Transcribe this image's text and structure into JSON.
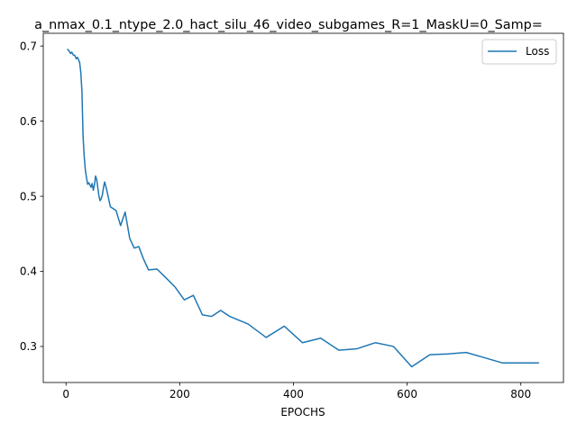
{
  "chart_data": {
    "type": "line",
    "title": "a_nmax_0.1_ntype_2.0_hact_silu_46_video_subgames_R=1_MaskU=0_Samp=",
    "xlabel": "EPOCHS",
    "ylabel": "",
    "xlim": [
      -40,
      875
    ],
    "ylim": [
      0.252,
      0.717
    ],
    "x_ticks": [
      0,
      200,
      400,
      600,
      800
    ],
    "y_ticks": [
      0.3,
      0.4,
      0.5,
      0.6,
      0.7
    ],
    "x_tick_labels": [
      "0",
      "200",
      "400",
      "600",
      "800"
    ],
    "y_tick_labels": [
      "0.3",
      "0.4",
      "0.5",
      "0.6",
      "0.7"
    ],
    "grid": false,
    "legend_position": "top-right",
    "series": [
      {
        "name": "Loss",
        "color": "#1f77b4",
        "x": [
          2,
          5,
          8,
          10,
          13,
          15,
          18,
          20,
          22,
          24,
          26,
          28,
          30,
          32,
          34,
          36,
          38,
          40,
          42,
          44,
          46,
          48,
          50,
          52,
          54,
          56,
          58,
          60,
          62,
          64,
          66,
          68,
          72,
          78,
          88,
          96,
          104,
          112,
          120,
          128,
          136,
          145,
          160,
          175,
          192,
          208,
          224,
          240,
          256,
          272,
          288,
          320,
          352,
          384,
          416,
          448,
          480,
          512,
          544,
          576,
          608,
          640,
          672,
          704,
          736,
          768,
          800,
          832
        ],
        "y": [
          0.696,
          0.694,
          0.69,
          0.692,
          0.688,
          0.688,
          0.683,
          0.685,
          0.682,
          0.678,
          0.665,
          0.64,
          0.58,
          0.553,
          0.535,
          0.525,
          0.516,
          0.518,
          0.515,
          0.512,
          0.517,
          0.508,
          0.515,
          0.527,
          0.522,
          0.511,
          0.5,
          0.494,
          0.497,
          0.502,
          0.512,
          0.519,
          0.507,
          0.486,
          0.481,
          0.461,
          0.479,
          0.444,
          0.431,
          0.433,
          0.417,
          0.402,
          0.403,
          0.392,
          0.379,
          0.362,
          0.368,
          0.342,
          0.34,
          0.348,
          0.34,
          0.33,
          0.312,
          0.327,
          0.305,
          0.311,
          0.295,
          0.297,
          0.305,
          0.3,
          0.273,
          0.289,
          0.29,
          0.292,
          0.285,
          0.278,
          0.278,
          0.278
        ]
      }
    ]
  }
}
